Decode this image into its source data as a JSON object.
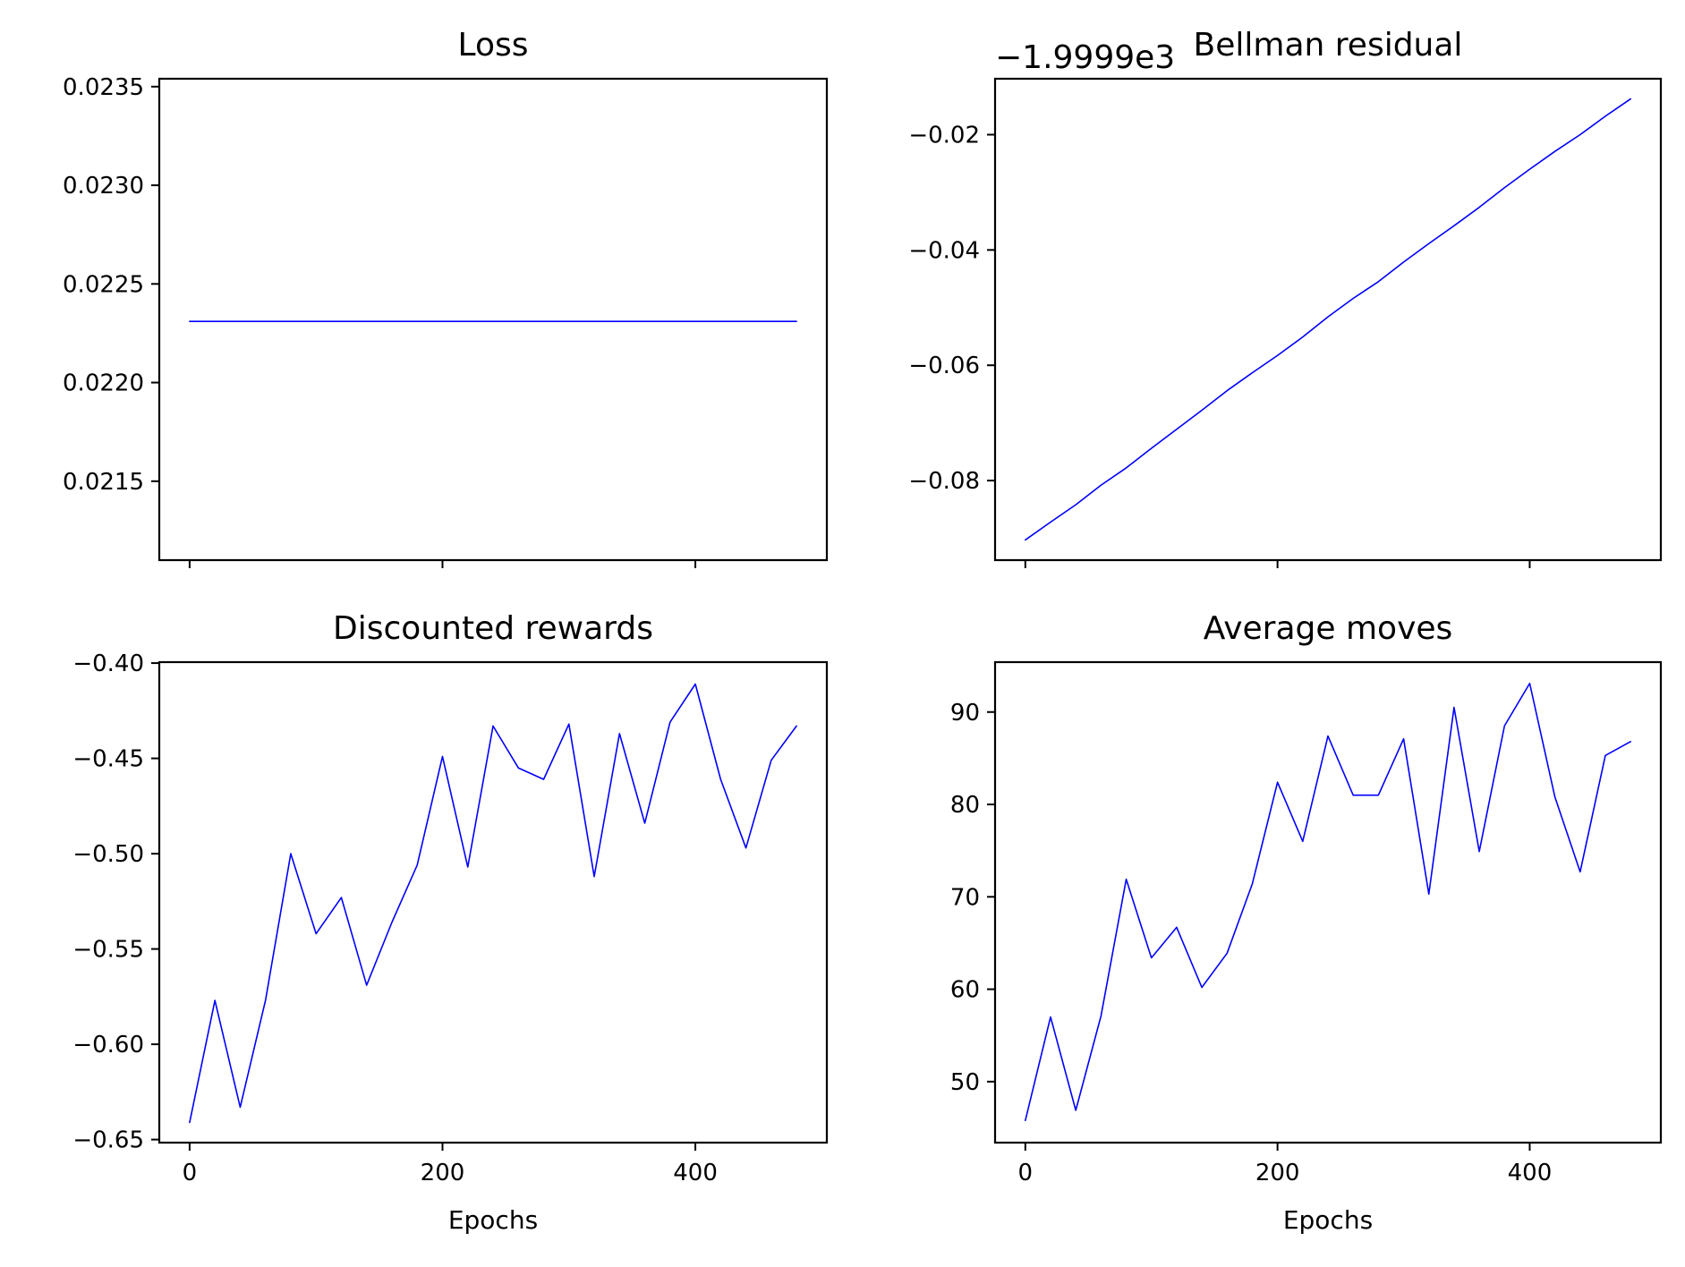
{
  "colors": {
    "line": "#0000ff",
    "frame": "#000000",
    "background": "#ffffff"
  },
  "chart_data": [
    {
      "type": "line",
      "title": "Loss",
      "xlabel": "",
      "ylabel": "",
      "xlim": [
        -24,
        504
      ],
      "ylim": [
        0.0211,
        0.02354
      ],
      "xticks": [
        0,
        200,
        400
      ],
      "xtick_labels": [
        "",
        "",
        ""
      ],
      "yticks": [
        0.0215,
        0.022,
        0.0225,
        0.023,
        0.0235
      ],
      "ytick_labels": [
        "0.0215",
        "0.0220",
        "0.0225",
        "0.0230",
        "0.0235"
      ],
      "offset_text": "",
      "grid": false,
      "legend": "none",
      "series": [
        {
          "x": [
            0,
            20,
            40,
            60,
            80,
            100,
            120,
            140,
            160,
            180,
            200,
            220,
            240,
            260,
            280,
            300,
            320,
            340,
            360,
            380,
            400,
            420,
            440,
            460,
            480
          ],
          "y": [
            0.02231,
            0.02231,
            0.02231,
            0.02231,
            0.02231,
            0.02231,
            0.02231,
            0.02231,
            0.02231,
            0.02231,
            0.02231,
            0.02231,
            0.02231,
            0.02231,
            0.02231,
            0.02231,
            0.02231,
            0.02231,
            0.02231,
            0.02231,
            0.02231,
            0.02231,
            0.02231,
            0.02231,
            0.02231
          ]
        }
      ]
    },
    {
      "type": "line",
      "title": "Bellman residual",
      "xlabel": "",
      "ylabel": "",
      "xlim": [
        -24,
        504
      ],
      "ylim": [
        -0.0938,
        -0.0103
      ],
      "xticks": [
        0,
        200,
        400
      ],
      "xtick_labels": [
        "",
        "",
        ""
      ],
      "yticks": [
        -0.08,
        -0.06,
        -0.04,
        -0.02
      ],
      "ytick_labels": [
        "−0.08",
        "−0.06",
        "−0.04",
        "−0.02"
      ],
      "offset_text": "−1.9999e3",
      "grid": false,
      "legend": "none",
      "series": [
        {
          "x": [
            0,
            20,
            40,
            60,
            80,
            100,
            120,
            140,
            160,
            180,
            200,
            220,
            240,
            260,
            280,
            300,
            320,
            340,
            360,
            380,
            400,
            420,
            440,
            460,
            480
          ],
          "y": [
            -0.0903,
            -0.0872,
            -0.0842,
            -0.0808,
            -0.0778,
            -0.0744,
            -0.0711,
            -0.0678,
            -0.0644,
            -0.0613,
            -0.0583,
            -0.0551,
            -0.0516,
            -0.0484,
            -0.0455,
            -0.0421,
            -0.0389,
            -0.0358,
            -0.0326,
            -0.0292,
            -0.026,
            -0.0229,
            -0.02,
            -0.0168,
            -0.0138
          ]
        }
      ]
    },
    {
      "type": "line",
      "title": "Discounted rewards",
      "xlabel": "Epochs",
      "ylabel": "",
      "xlim": [
        -24,
        504
      ],
      "ylim": [
        -0.6516,
        -0.3995
      ],
      "xticks": [
        0,
        200,
        400
      ],
      "xtick_labels": [
        "0",
        "200",
        "400"
      ],
      "yticks": [
        -0.65,
        -0.6,
        -0.55,
        -0.5,
        -0.45,
        -0.4
      ],
      "ytick_labels": [
        "−0.65",
        "−0.60",
        "−0.55",
        "−0.50",
        "−0.45",
        "−0.40"
      ],
      "offset_text": "",
      "grid": false,
      "legend": "none",
      "series": [
        {
          "x": [
            0,
            20,
            40,
            60,
            80,
            100,
            120,
            140,
            160,
            180,
            200,
            220,
            240,
            260,
            280,
            300,
            320,
            340,
            360,
            380,
            400,
            420,
            440,
            460,
            480
          ],
          "y": [
            -0.641,
            -0.577,
            -0.633,
            -0.577,
            -0.5,
            -0.542,
            -0.523,
            -0.569,
            -0.536,
            -0.506,
            -0.449,
            -0.507,
            -0.433,
            -0.455,
            -0.461,
            -0.432,
            -0.512,
            -0.437,
            -0.484,
            -0.431,
            -0.411,
            -0.461,
            -0.497,
            -0.451,
            -0.433
          ]
        }
      ]
    },
    {
      "type": "line",
      "title": "Average moves",
      "xlabel": "Epochs",
      "ylabel": "",
      "xlim": [
        -24,
        504
      ],
      "ylim": [
        43.4,
        95.4
      ],
      "xticks": [
        0,
        200,
        400
      ],
      "xtick_labels": [
        "0",
        "200",
        "400"
      ],
      "yticks": [
        50,
        60,
        70,
        80,
        90
      ],
      "ytick_labels": [
        "50",
        "60",
        "70",
        "80",
        "90"
      ],
      "offset_text": "",
      "grid": false,
      "legend": "none",
      "series": [
        {
          "x": [
            0,
            20,
            40,
            60,
            80,
            100,
            120,
            140,
            160,
            180,
            200,
            220,
            240,
            260,
            280,
            300,
            320,
            340,
            360,
            380,
            400,
            420,
            440,
            460,
            480
          ],
          "y": [
            45.8,
            57.0,
            46.9,
            57.1,
            71.9,
            63.4,
            66.7,
            60.2,
            63.9,
            71.4,
            82.4,
            76.0,
            87.4,
            81.0,
            81.0,
            87.1,
            70.3,
            90.5,
            74.9,
            88.5,
            93.1,
            80.8,
            72.7,
            85.3,
            86.8
          ]
        }
      ]
    }
  ]
}
